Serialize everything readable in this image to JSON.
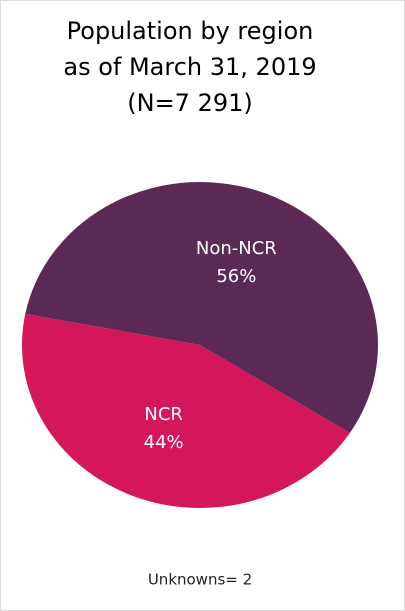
{
  "chart_data": {
    "type": "pie",
    "title": [
      "Population by region",
      "as of March 31, 2019",
      "(N=7 291)"
    ],
    "categories": [
      "NCR",
      "Non-NCR"
    ],
    "values": [
      44,
      56
    ],
    "value_labels": [
      "44%",
      "56%"
    ],
    "colors": [
      "#d3175a",
      "#5a2a55"
    ],
    "annotation": "Unknowns= 2"
  }
}
